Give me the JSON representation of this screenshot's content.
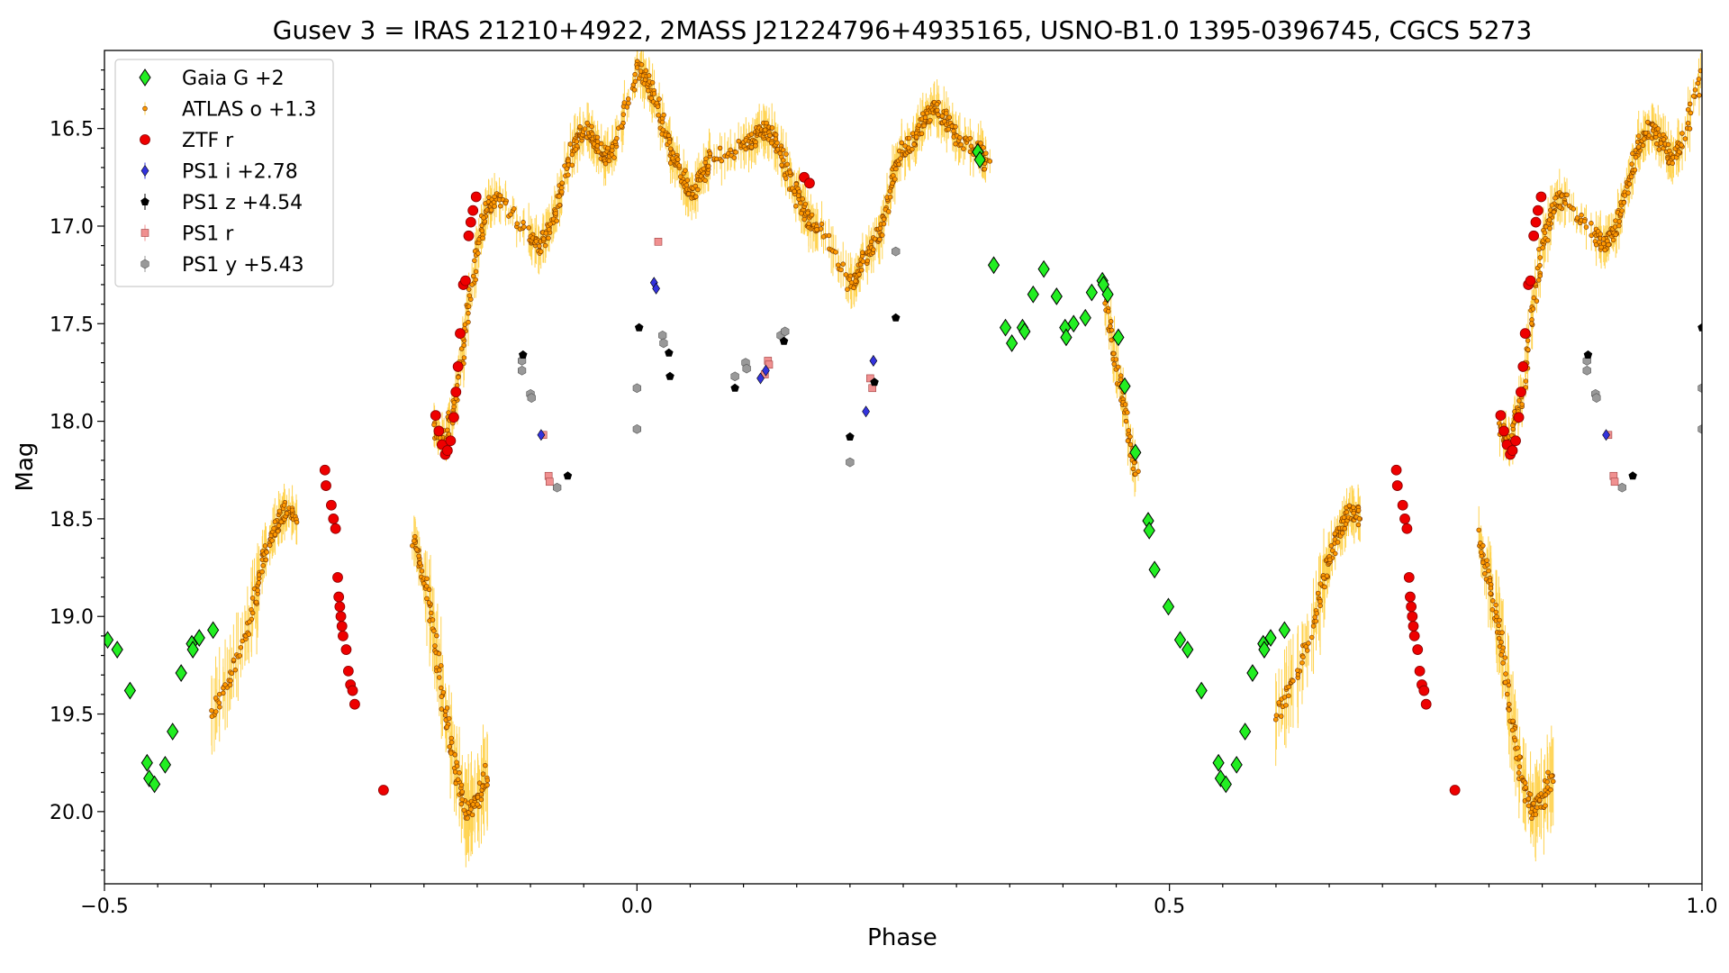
{
  "chart_data": {
    "type": "scatter",
    "title": "Gusev 3 = IRAS 21210+4922, 2MASS J21224796+4935165, USNO-B1.0 1395-0396745, CGCS 5273",
    "xlabel": "Phase",
    "ylabel": "Mag",
    "xlim": [
      -0.5,
      1.0
    ],
    "ylim": [
      20.37,
      16.1
    ],
    "y_inverted": true,
    "xticks": [
      -0.5,
      0.0,
      0.5,
      1.0
    ],
    "xtick_labels": [
      "−0.5",
      "0.0",
      "0.5",
      "1.0"
    ],
    "yticks": [
      16.5,
      17.0,
      17.5,
      18.0,
      18.5,
      19.0,
      19.5,
      20.0
    ],
    "ytick_labels": [
      "16.5",
      "17.0",
      "17.5",
      "18.0",
      "18.5",
      "19.0",
      "19.5",
      "20.0"
    ],
    "legend_position": "top-left",
    "grid": false,
    "atlas_anchors": [
      [
        -0.4,
        19.5
      ],
      [
        -0.38,
        19.3
      ],
      [
        -0.36,
        18.95
      ],
      [
        -0.35,
        18.7
      ],
      [
        -0.34,
        18.55
      ],
      [
        -0.33,
        18.45
      ],
      [
        -0.32,
        18.5
      ],
      [
        -0.21,
        18.6
      ],
      [
        -0.2,
        18.8
      ],
      [
        -0.19,
        19.1
      ],
      [
        -0.18,
        19.5
      ],
      [
        -0.17,
        19.8
      ],
      [
        -0.16,
        20.0
      ],
      [
        -0.15,
        19.95
      ],
      [
        -0.14,
        19.8
      ],
      [
        -0.19,
        18.05
      ],
      [
        -0.18,
        18.1
      ],
      [
        -0.17,
        17.9
      ],
      [
        -0.16,
        17.5
      ],
      [
        -0.15,
        17.1
      ],
      [
        -0.14,
        16.9
      ],
      [
        -0.13,
        16.85
      ],
      [
        -0.1,
        17.05
      ],
      [
        -0.09,
        17.1
      ],
      [
        -0.08,
        17.0
      ],
      [
        -0.07,
        16.8
      ],
      [
        -0.06,
        16.6
      ],
      [
        -0.05,
        16.5
      ],
      [
        -0.04,
        16.55
      ],
      [
        -0.03,
        16.65
      ],
      [
        -0.02,
        16.6
      ],
      [
        0.0,
        16.2
      ],
      [
        0.01,
        16.25
      ],
      [
        0.02,
        16.4
      ],
      [
        0.03,
        16.6
      ],
      [
        0.04,
        16.7
      ],
      [
        0.05,
        16.85
      ],
      [
        0.06,
        16.75
      ],
      [
        0.07,
        16.65
      ],
      [
        0.1,
        16.6
      ],
      [
        0.11,
        16.55
      ],
      [
        0.12,
        16.5
      ],
      [
        0.13,
        16.55
      ],
      [
        0.14,
        16.7
      ],
      [
        0.15,
        16.85
      ],
      [
        0.16,
        16.95
      ],
      [
        0.17,
        17.0
      ],
      [
        0.2,
        17.3
      ],
      [
        0.21,
        17.2
      ],
      [
        0.22,
        17.1
      ],
      [
        0.23,
        17.0
      ],
      [
        0.24,
        16.75
      ],
      [
        0.25,
        16.6
      ],
      [
        0.26,
        16.55
      ],
      [
        0.27,
        16.45
      ],
      [
        0.28,
        16.4
      ],
      [
        0.29,
        16.45
      ],
      [
        0.3,
        16.55
      ],
      [
        0.32,
        16.6
      ],
      [
        0.33,
        16.7
      ],
      [
        0.44,
        17.4
      ],
      [
        0.45,
        17.7
      ],
      [
        0.46,
        18.0
      ],
      [
        0.47,
        18.3
      ],
      [
        0.6,
        19.5
      ],
      [
        0.62,
        19.3
      ],
      [
        0.64,
        18.95
      ],
      [
        0.65,
        18.7
      ],
      [
        0.66,
        18.55
      ],
      [
        0.67,
        18.45
      ],
      [
        0.68,
        18.5
      ],
      [
        0.79,
        18.6
      ],
      [
        0.8,
        18.8
      ],
      [
        0.81,
        19.1
      ],
      [
        0.82,
        19.5
      ],
      [
        0.83,
        19.8
      ],
      [
        0.84,
        20.0
      ],
      [
        0.85,
        19.95
      ],
      [
        0.86,
        19.8
      ],
      [
        0.81,
        18.05
      ],
      [
        0.82,
        18.1
      ],
      [
        0.83,
        17.9
      ],
      [
        0.84,
        17.5
      ],
      [
        0.85,
        17.1
      ],
      [
        0.86,
        16.9
      ],
      [
        0.87,
        16.85
      ],
      [
        0.9,
        17.05
      ],
      [
        0.91,
        17.1
      ],
      [
        0.92,
        17.0
      ],
      [
        0.93,
        16.8
      ],
      [
        0.94,
        16.6
      ],
      [
        0.95,
        16.5
      ],
      [
        0.96,
        16.55
      ],
      [
        0.97,
        16.65
      ],
      [
        0.98,
        16.6
      ],
      [
        1.0,
        16.2
      ]
    ],
    "series": [
      {
        "name": "Gaia G +2",
        "marker": "diamond",
        "color": "#22ee22",
        "points": [
          [
            -0.497,
            19.12
          ],
          [
            -0.488,
            19.17
          ],
          [
            -0.476,
            19.38
          ],
          [
            -0.46,
            19.75
          ],
          [
            -0.458,
            19.83
          ],
          [
            -0.453,
            19.86
          ],
          [
            -0.443,
            19.76
          ],
          [
            -0.436,
            19.59
          ],
          [
            -0.428,
            19.29
          ],
          [
            -0.418,
            19.14
          ],
          [
            -0.417,
            19.17
          ],
          [
            -0.411,
            19.11
          ],
          [
            -0.398,
            19.07
          ],
          [
            0.32,
            16.62
          ],
          [
            0.322,
            16.66
          ],
          [
            0.335,
            17.2
          ],
          [
            0.346,
            17.52
          ],
          [
            0.352,
            17.6
          ],
          [
            0.362,
            17.52
          ],
          [
            0.364,
            17.54
          ],
          [
            0.372,
            17.35
          ],
          [
            0.382,
            17.22
          ],
          [
            0.394,
            17.36
          ],
          [
            0.402,
            17.52
          ],
          [
            0.403,
            17.57
          ],
          [
            0.41,
            17.5
          ],
          [
            0.421,
            17.47
          ],
          [
            0.427,
            17.34
          ],
          [
            0.437,
            17.28
          ],
          [
            0.438,
            17.3
          ],
          [
            0.442,
            17.35
          ],
          [
            0.452,
            17.57
          ],
          [
            0.458,
            17.82
          ],
          [
            0.468,
            18.16
          ],
          [
            0.48,
            18.51
          ],
          [
            0.481,
            18.56
          ],
          [
            0.486,
            18.76
          ],
          [
            0.499,
            18.95
          ],
          [
            0.51,
            19.12
          ],
          [
            0.517,
            19.17
          ],
          [
            0.53,
            19.38
          ],
          [
            0.546,
            19.75
          ],
          [
            0.548,
            19.83
          ],
          [
            0.553,
            19.86
          ],
          [
            0.563,
            19.76
          ],
          [
            0.571,
            19.59
          ],
          [
            0.578,
            19.29
          ],
          [
            0.588,
            19.14
          ],
          [
            0.589,
            19.17
          ],
          [
            0.595,
            19.11
          ],
          [
            0.608,
            19.07
          ]
        ]
      },
      {
        "name": "ATLAS o +1.3",
        "marker": "small-circle",
        "color": "#ff9900",
        "points": []
      },
      {
        "name": "ZTF r",
        "marker": "circle",
        "color": "#ee0000",
        "points": [
          [
            -0.293,
            18.25
          ],
          [
            -0.292,
            18.33
          ],
          [
            -0.287,
            18.43
          ],
          [
            -0.285,
            18.5
          ],
          [
            -0.283,
            18.55
          ],
          [
            -0.281,
            18.8
          ],
          [
            -0.28,
            18.9
          ],
          [
            -0.279,
            18.95
          ],
          [
            -0.278,
            19.0
          ],
          [
            -0.277,
            19.05
          ],
          [
            -0.276,
            19.1
          ],
          [
            -0.273,
            19.17
          ],
          [
            -0.271,
            19.28
          ],
          [
            -0.269,
            19.35
          ],
          [
            -0.267,
            19.38
          ],
          [
            -0.265,
            19.45
          ],
          [
            -0.238,
            19.89
          ],
          [
            -0.189,
            17.97
          ],
          [
            -0.186,
            18.05
          ],
          [
            -0.183,
            18.12
          ],
          [
            -0.18,
            18.17
          ],
          [
            -0.178,
            18.15
          ],
          [
            -0.175,
            18.1
          ],
          [
            -0.172,
            17.98
          ],
          [
            -0.17,
            17.85
          ],
          [
            -0.168,
            17.72
          ],
          [
            -0.166,
            17.55
          ],
          [
            -0.163,
            17.3
          ],
          [
            -0.161,
            17.28
          ],
          [
            -0.158,
            17.05
          ],
          [
            -0.156,
            16.98
          ],
          [
            -0.154,
            16.92
          ],
          [
            -0.151,
            16.85
          ],
          [
            0.157,
            16.75
          ],
          [
            0.162,
            16.78
          ],
          [
            0.713,
            18.25
          ],
          [
            0.714,
            18.33
          ],
          [
            0.719,
            18.43
          ],
          [
            0.721,
            18.5
          ],
          [
            0.723,
            18.55
          ],
          [
            0.725,
            18.8
          ],
          [
            0.726,
            18.9
          ],
          [
            0.727,
            18.95
          ],
          [
            0.728,
            19.0
          ],
          [
            0.729,
            19.05
          ],
          [
            0.73,
            19.1
          ],
          [
            0.733,
            19.17
          ],
          [
            0.735,
            19.28
          ],
          [
            0.737,
            19.35
          ],
          [
            0.739,
            19.38
          ],
          [
            0.741,
            19.45
          ],
          [
            0.768,
            19.89
          ],
          [
            0.811,
            17.97
          ],
          [
            0.814,
            18.05
          ],
          [
            0.817,
            18.12
          ],
          [
            0.82,
            18.17
          ],
          [
            0.822,
            18.15
          ],
          [
            0.825,
            18.1
          ],
          [
            0.828,
            17.98
          ],
          [
            0.83,
            17.85
          ],
          [
            0.832,
            17.72
          ],
          [
            0.834,
            17.55
          ],
          [
            0.837,
            17.3
          ],
          [
            0.839,
            17.28
          ],
          [
            0.842,
            17.05
          ],
          [
            0.844,
            16.98
          ],
          [
            0.846,
            16.92
          ],
          [
            0.849,
            16.85
          ]
        ]
      },
      {
        "name": "PS1 i +2.78",
        "marker": "thin-diamond",
        "color": "#3333dd",
        "points": [
          [
            -0.09,
            18.07
          ],
          [
            0.016,
            17.29
          ],
          [
            0.018,
            17.32
          ],
          [
            0.116,
            17.78
          ],
          [
            0.121,
            17.74
          ],
          [
            0.215,
            17.95
          ],
          [
            0.222,
            17.69
          ],
          [
            0.91,
            18.07
          ]
        ]
      },
      {
        "name": "PS1 z +4.54",
        "marker": "pentagon",
        "color": "#000000",
        "points": [
          [
            -0.107,
            17.66
          ],
          [
            -0.065,
            18.28
          ],
          [
            0.002,
            17.52
          ],
          [
            0.03,
            17.65
          ],
          [
            0.031,
            17.77
          ],
          [
            0.092,
            17.83
          ],
          [
            0.138,
            17.59
          ],
          [
            0.2,
            18.08
          ],
          [
            0.223,
            17.8
          ],
          [
            0.243,
            17.47
          ],
          [
            0.893,
            17.66
          ],
          [
            0.935,
            18.28
          ],
          [
            1.0,
            17.52
          ]
        ]
      },
      {
        "name": "PS1 r",
        "marker": "square",
        "color": "#f09090",
        "points": [
          [
            -0.088,
            18.07
          ],
          [
            -0.083,
            18.28
          ],
          [
            -0.082,
            18.31
          ],
          [
            0.02,
            17.08
          ],
          [
            0.12,
            17.76
          ],
          [
            0.123,
            17.69
          ],
          [
            0.124,
            17.71
          ],
          [
            0.219,
            17.78
          ],
          [
            0.221,
            17.83
          ],
          [
            0.912,
            18.07
          ],
          [
            0.917,
            18.28
          ],
          [
            0.918,
            18.31
          ]
        ]
      },
      {
        "name": "PS1 y +5.43",
        "marker": "hexagon",
        "color": "#999999",
        "points": [
          [
            -0.108,
            17.69
          ],
          [
            -0.108,
            17.74
          ],
          [
            -0.1,
            17.86
          ],
          [
            -0.099,
            17.88
          ],
          [
            -0.075,
            18.34
          ],
          [
            0.0,
            17.83
          ],
          [
            0.0,
            18.04
          ],
          [
            0.024,
            17.56
          ],
          [
            0.025,
            17.6
          ],
          [
            0.092,
            17.77
          ],
          [
            0.102,
            17.7
          ],
          [
            0.103,
            17.73
          ],
          [
            0.135,
            17.56
          ],
          [
            0.139,
            17.54
          ],
          [
            0.2,
            18.21
          ],
          [
            0.243,
            17.13
          ],
          [
            0.892,
            17.69
          ],
          [
            0.892,
            17.74
          ],
          [
            0.9,
            17.86
          ],
          [
            0.901,
            17.88
          ],
          [
            0.925,
            18.34
          ],
          [
            1.0,
            17.83
          ],
          [
            1.0,
            18.04
          ]
        ]
      }
    ]
  }
}
